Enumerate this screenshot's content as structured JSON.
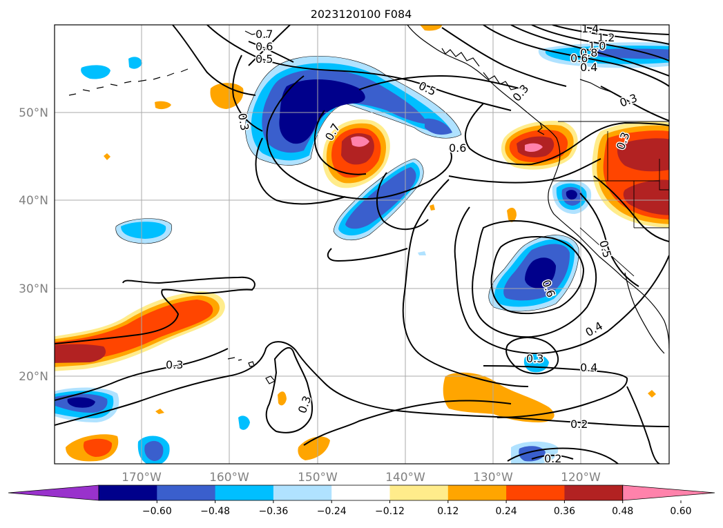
{
  "title": "2023120100 F084",
  "lat_labels": [
    "50°N",
    "40°N",
    "30°N",
    "20°N"
  ],
  "lon_labels": [
    "170°W",
    "160°W",
    "150°W",
    "140°W",
    "130°W",
    "120°W"
  ],
  "colorbar": {
    "levels": [
      "−0.60",
      "−0.48",
      "−0.36",
      "−0.24",
      "−0.12",
      "0.12",
      "0.24",
      "0.36",
      "0.48",
      "0.60"
    ],
    "colors": [
      "#9932cc",
      "#00008b",
      "#3a5fcd",
      "#00bfff",
      "#b0e2ff",
      "#ffffff",
      "#ffec8b",
      "#ffa500",
      "#ff4500",
      "#b22222",
      "#ff82ab"
    ]
  },
  "contour_labels": [
    {
      "text": "0.7",
      "deg": 0
    },
    {
      "text": "0.6",
      "deg": 0
    },
    {
      "text": "0.5",
      "deg": 0
    },
    {
      "text": "0.3",
      "deg": 80
    },
    {
      "text": "0.7",
      "deg": -60
    },
    {
      "text": "0.5",
      "deg": 25
    },
    {
      "text": "0.6",
      "deg": 0
    },
    {
      "text": "0.3",
      "deg": -20
    },
    {
      "text": "1.4",
      "deg": 0
    },
    {
      "text": "1.2",
      "deg": 0
    },
    {
      "text": "1.0",
      "deg": 0
    },
    {
      "text": "0.8",
      "deg": 0
    },
    {
      "text": "0.6",
      "deg": 0
    },
    {
      "text": "0.4",
      "deg": 0
    },
    {
      "text": "0.3",
      "deg": -50
    },
    {
      "text": "0.3",
      "deg": -70
    },
    {
      "text": "0.5",
      "deg": 75
    },
    {
      "text": "0.6",
      "deg": 70
    },
    {
      "text": "0.4",
      "deg": -30
    },
    {
      "text": "0.3",
      "deg": 0
    },
    {
      "text": "0.4",
      "deg": 0
    },
    {
      "text": "0.2",
      "deg": 0
    },
    {
      "text": "0.2",
      "deg": 0
    },
    {
      "text": "0.3",
      "deg": 0
    },
    {
      "text": "0.3",
      "deg": -70
    }
  ]
}
